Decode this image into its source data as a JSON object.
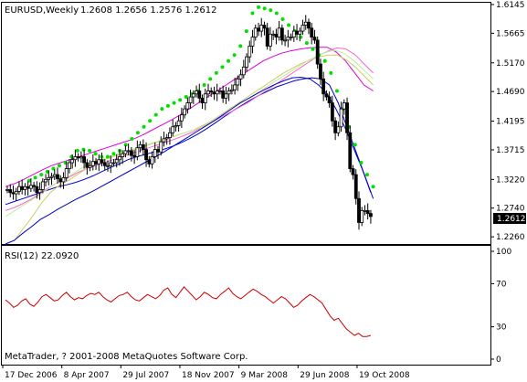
{
  "header": {
    "symbol": "EURUSD,Weekly",
    "ohlc": "1.2608 1.2656 1.2576 1.2612"
  },
  "indicator": {
    "label": "RSI(12) 22.0920",
    "color": "#cc0000"
  },
  "footer": {
    "copyright": "MetaTrader, ? 2001-2008 MetaQuotes Software Corp."
  },
  "current_price_label": "1.2612",
  "colors": {
    "background": "#ffffff",
    "candle": "#000000",
    "parabolic_sar": "#00e000",
    "ma_blue": "#0000cc",
    "ma_magenta": "#dd00dd",
    "ma_pink": "#ff66cc",
    "ma_olive": "#cccc66",
    "ma_lightgreen": "#bbee99",
    "ma_orange": "#ffaa88",
    "rsi_line": "#cc0000",
    "price_tag_bg": "#000000",
    "price_tag_fg": "#ffffff"
  },
  "chart_data": [
    {
      "type": "candlestick",
      "title": "EURUSD,Weekly",
      "x_tick_labels": [
        "17 Dec 2006",
        "8 Apr 2007",
        "29 Jul 2007",
        "18 Nov 2007",
        "9 Mar 2008",
        "29 Jun 2008",
        "19 Oct 2008"
      ],
      "y_tick_labels": [
        "1.6145",
        "1.5665",
        "1.5170",
        "1.4690",
        "1.4195",
        "1.3715",
        "1.3220",
        "1.2740",
        "1.2260"
      ],
      "ylim": [
        1.214,
        1.6175
      ],
      "last_close": 1.2612,
      "close_series": [
        1.305,
        1.3,
        1.298,
        1.302,
        1.31,
        1.305,
        1.31,
        1.307,
        1.312,
        1.31,
        1.3,
        1.305,
        1.318,
        1.322,
        1.325,
        1.327,
        1.33,
        1.323,
        1.318,
        1.325,
        1.34,
        1.35,
        1.355,
        1.36,
        1.358,
        1.36,
        1.35,
        1.342,
        1.345,
        1.352,
        1.348,
        1.355,
        1.35,
        1.345,
        1.345,
        1.35,
        1.35,
        1.355,
        1.36,
        1.365,
        1.37,
        1.37,
        1.362,
        1.36,
        1.375,
        1.38,
        1.372,
        1.355,
        1.348,
        1.36,
        1.372,
        1.368,
        1.385,
        1.39,
        1.392,
        1.4,
        1.41,
        1.412,
        1.42,
        1.43,
        1.44,
        1.45,
        1.46,
        1.465,
        1.47,
        1.458,
        1.45,
        1.465,
        1.47,
        1.468,
        1.465,
        1.47,
        1.47,
        1.458,
        1.465,
        1.47,
        1.472,
        1.48,
        1.49,
        1.497,
        1.51,
        1.527,
        1.545,
        1.56,
        1.575,
        1.57,
        1.58,
        1.575,
        1.545,
        1.565,
        1.565,
        1.56,
        1.575,
        1.555,
        1.555,
        1.56,
        1.56,
        1.57,
        1.565,
        1.57,
        1.58,
        1.585,
        1.575,
        1.56,
        1.555,
        1.515,
        1.49,
        1.465,
        1.46,
        1.45,
        1.42,
        1.4,
        1.41,
        1.44,
        1.45,
        1.4,
        1.34,
        1.33,
        1.29,
        1.25,
        1.27,
        1.27,
        1.265,
        1.26
      ],
      "series": [
        {
          "name": "",
          "values": [
            1.28,
            1.285,
            1.29,
            1.295,
            1.3,
            1.305,
            1.31,
            1.313,
            1.317,
            1.322,
            1.328,
            1.335,
            1.342,
            1.348,
            1.355,
            1.36,
            1.364,
            1.368,
            1.372,
            1.377,
            1.383,
            1.39,
            1.398,
            1.407,
            1.417,
            1.427,
            1.437,
            1.446,
            1.455,
            1.463,
            1.47,
            1.477,
            1.482,
            1.487,
            1.49,
            1.492,
            1.49,
            1.48,
            1.45,
            1.41,
            1.37,
            1.33,
            1.29
          ]
        },
        {
          "name": "",
          "values": [
            1.31,
            1.315,
            1.322,
            1.33,
            1.338,
            1.345,
            1.35,
            1.355,
            1.36,
            1.365,
            1.37,
            1.375,
            1.38,
            1.385,
            1.39,
            1.397,
            1.405,
            1.413,
            1.421,
            1.43,
            1.44,
            1.45,
            1.46,
            1.47,
            1.48,
            1.49,
            1.5,
            1.51,
            1.52,
            1.527,
            1.533,
            1.537,
            1.54,
            1.542,
            1.543,
            1.543,
            1.535,
            1.52,
            1.5,
            1.48,
            1.47
          ]
        },
        {
          "name": "",
          "values": [
            1.27,
            1.275,
            1.282,
            1.29,
            1.3,
            1.31,
            1.318,
            1.325,
            1.333,
            1.34,
            1.345,
            1.35,
            1.355,
            1.36,
            1.365,
            1.37,
            1.375,
            1.38,
            1.385,
            1.39,
            1.396,
            1.402,
            1.41,
            1.418,
            1.426,
            1.434,
            1.442,
            1.45,
            1.46,
            1.47,
            1.48,
            1.49,
            1.5,
            1.51,
            1.52,
            1.53,
            1.537,
            1.542,
            1.54,
            1.53,
            1.515,
            1.5
          ]
        },
        {
          "name": "",
          "values": [
            1.2,
            1.22,
            1.24,
            1.26,
            1.282,
            1.3,
            1.312,
            1.32,
            1.33,
            1.34,
            1.35,
            1.355,
            1.36,
            1.365,
            1.37,
            1.375,
            1.38,
            1.385,
            1.39,
            1.395,
            1.4,
            1.405,
            1.412,
            1.42,
            1.43,
            1.44,
            1.45,
            1.46,
            1.47,
            1.48,
            1.49,
            1.5,
            1.508,
            1.516,
            1.522,
            1.527,
            1.53,
            1.53,
            1.522,
            1.51,
            1.495,
            1.48
          ]
        },
        {
          "name": "",
          "values": [
            1.26,
            1.27,
            1.28,
            1.29,
            1.3,
            1.312,
            1.32,
            1.33,
            1.34,
            1.35,
            1.355,
            1.36,
            1.365,
            1.37,
            1.375,
            1.38,
            1.385,
            1.39,
            1.395,
            1.4,
            1.405,
            1.41,
            1.42,
            1.43,
            1.44,
            1.45,
            1.46,
            1.47,
            1.48,
            1.49,
            1.5,
            1.51,
            1.52,
            1.528,
            1.535,
            1.538,
            1.532,
            1.52,
            1.505,
            1.49
          ]
        },
        {
          "name": "",
          "values": [
            1.21,
            1.22,
            1.232,
            1.243,
            1.255,
            1.263,
            1.272,
            1.28,
            1.288,
            1.295,
            1.302,
            1.31,
            1.318,
            1.326,
            1.334,
            1.342,
            1.35,
            1.358,
            1.366,
            1.375,
            1.384,
            1.393,
            1.402,
            1.411,
            1.42,
            1.43,
            1.44,
            1.45,
            1.458,
            1.466,
            1.474,
            1.481,
            1.487,
            1.492,
            1.493,
            1.49,
            1.48,
            1.465,
            1.44,
            1.41,
            1.375,
            1.34,
            1.3
          ]
        }
      ],
      "sar_values": [
        1.32,
        1.325,
        1.33,
        1.335,
        1.34,
        1.345,
        1.35,
        1.36,
        1.37,
        1.372,
        1.37,
        1.365,
        1.36,
        1.36,
        1.365,
        1.37,
        1.38,
        1.39,
        1.4,
        1.41,
        1.42,
        1.43,
        1.44,
        1.445,
        1.45,
        1.455,
        1.46,
        1.465,
        1.47,
        1.48,
        1.49,
        1.5,
        1.51,
        1.52,
        1.53,
        1.545,
        1.57,
        1.6,
        1.61,
        1.608,
        1.605,
        1.6,
        1.59,
        1.58,
        1.57,
        1.56,
        1.55,
        1.54,
        1.53,
        1.52,
        1.5,
        1.47,
        1.44,
        1.41,
        1.38,
        1.35,
        1.33,
        1.31
      ]
    },
    {
      "type": "line",
      "title": "RSI(12) 22.0920",
      "ylim": [
        0,
        100
      ],
      "y_tick_labels": [
        "100",
        "70",
        "30",
        "0"
      ],
      "series": [
        {
          "name": "RSI(12)",
          "values": [
            55,
            52,
            48,
            50,
            54,
            56,
            51,
            49,
            53,
            58,
            60,
            57,
            54,
            55,
            59,
            62,
            58,
            55,
            57,
            56,
            59,
            61,
            60,
            62,
            58,
            55,
            53,
            56,
            59,
            60,
            62,
            58,
            55,
            54,
            57,
            60,
            58,
            56,
            59,
            64,
            66,
            60,
            57,
            62,
            67,
            63,
            59,
            55,
            58,
            62,
            60,
            57,
            56,
            60,
            63,
            66,
            61,
            58,
            56,
            59,
            62,
            65,
            63,
            60,
            58,
            55,
            52,
            55,
            58,
            56,
            52,
            48,
            50,
            54,
            57,
            60,
            58,
            55,
            52,
            46,
            40,
            36,
            38,
            33,
            28,
            25,
            22,
            24,
            21,
            21,
            22
          ]
        }
      ]
    }
  ]
}
